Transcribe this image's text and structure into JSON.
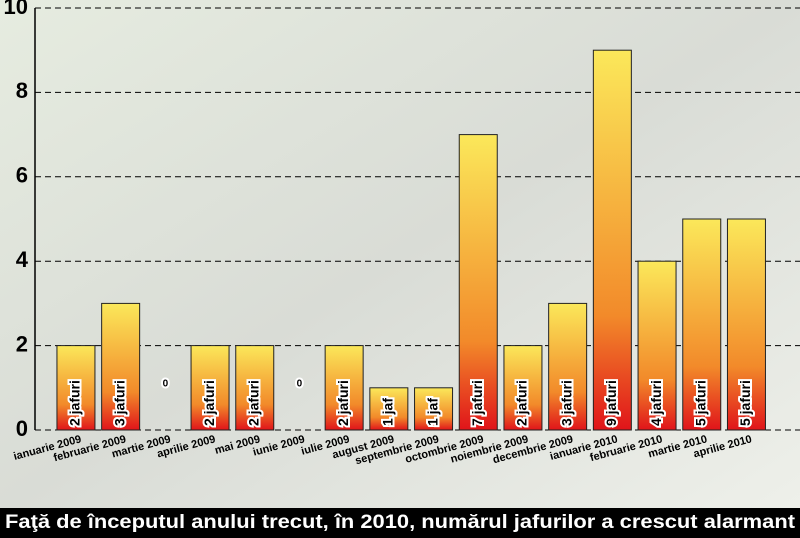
{
  "chart_data": {
    "type": "bar",
    "title": "Faţă de începutul anului trecut, în 2010, numărul jafurilor a crescut alarmant",
    "categories": [
      "ianuarie 2009",
      "februarie 2009",
      "martie 2009",
      "aprilie 2009",
      "mai 2009",
      "iunie 2009",
      "iulie 2009",
      "august 2009",
      "septembrie 2009",
      "octombrie 2009",
      "noiembrie 2009",
      "decembrie 2009",
      "ianuarie 2010",
      "februarie 2010",
      "martie 2010",
      "aprilie 2010"
    ],
    "values": [
      2,
      3,
      0,
      2,
      2,
      0,
      2,
      1,
      1,
      7,
      2,
      3,
      9,
      4,
      5,
      5
    ],
    "value_labels": [
      "2 jafuri",
      "3 jafuri",
      "0",
      "2 jafuri",
      "2 jafuri",
      "0",
      "2 jafuri",
      "1 jaf",
      "1 jaf",
      "7 jafuri",
      "2 jafuri",
      "3 jafuri",
      "9 jafuri",
      "4 jafuri",
      "5 jafuri",
      "5 jafuri"
    ],
    "gradient": [
      "#fbe85a",
      "#e0141a"
    ],
    "ylim": [
      0,
      10
    ],
    "yticks": [
      0,
      2,
      4,
      6,
      8,
      10
    ],
    "grid": true
  }
}
